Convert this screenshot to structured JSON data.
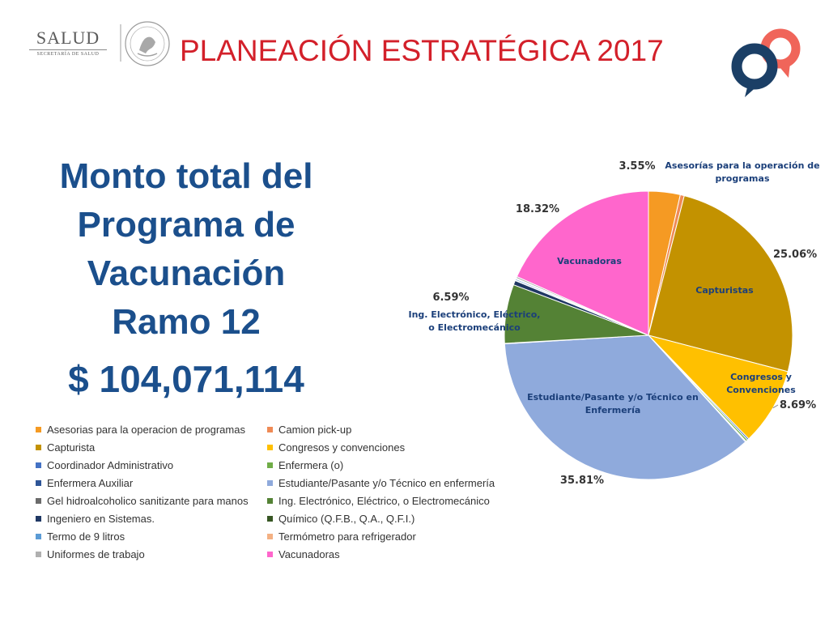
{
  "header": {
    "logo_text": "SALUD",
    "logo_subtext": "SECRETARÍA DE SALUD",
    "title": "PLANEACIÓN ESTRATÉGICA 2017"
  },
  "summary": {
    "lines": [
      "Monto total del",
      "Programa de",
      "Vacunación",
      "Ramo 12"
    ],
    "amount": "$ 104,071,114"
  },
  "chart_data": {
    "type": "pie",
    "start_angle_deg": 0,
    "direction": "clockwise",
    "slices": [
      {
        "label": "Asesorias para la operacion de programas",
        "value": 3.55,
        "color": "#f59a23"
      },
      {
        "label": "Camion pick-up",
        "value": 0.45,
        "color": "#ef8a55"
      },
      {
        "label": "Capturista",
        "value": 25.06,
        "color": "#c39200"
      },
      {
        "label": "Congresos y convenciones",
        "value": 8.69,
        "color": "#ffc000"
      },
      {
        "label": "Coordinador Administrativo",
        "value": 0.18,
        "color": "#4472c4"
      },
      {
        "label": "Enfermera (o)",
        "value": 0.22,
        "color": "#70ad47"
      },
      {
        "label": "Enfermera Auxiliar",
        "value": 0.1,
        "color": "#2e5597"
      },
      {
        "label": "Estudiante/Pasante y/o Técnico en enfermería",
        "value": 35.81,
        "color": "#8faadc"
      },
      {
        "label": "Gel hidroalcoholico sanitizante para manos",
        "value": 0.05,
        "color": "#6b6b6b"
      },
      {
        "label": "Ing. Electrónico, Eléctrico, o Electromecánico",
        "value": 6.59,
        "color": "#548235"
      },
      {
        "label": "Ingeniero en Sistemas.",
        "value": 0.5,
        "color": "#203864"
      },
      {
        "label": "Químico (Q.F.B., Q.A., Q.F.I.)",
        "value": 0.05,
        "color": "#375623"
      },
      {
        "label": "Termo de 9 litros",
        "value": 0.15,
        "color": "#5b9bd5"
      },
      {
        "label": "Termómetro para refrigerador",
        "value": 0.08,
        "color": "#f4b183"
      },
      {
        "label": "Uniformes de trabajo",
        "value": 0.2,
        "color": "#b0b0b0"
      },
      {
        "label": "Vacunadoras",
        "value": 18.32,
        "color": "#ff66cc"
      }
    ],
    "percent_labels": [
      {
        "slice": "Asesorias para la operacion de programas",
        "text": "3.55%"
      },
      {
        "slice": "Capturista",
        "text": "25.06%"
      },
      {
        "slice": "Congresos y convenciones",
        "text": "8.69%"
      },
      {
        "slice": "Estudiante/Pasante y/o Técnico en enfermería",
        "text": "35.81%"
      },
      {
        "slice": "Ing. Electrónico, Eléctrico, o Electromecánico",
        "text": "6.59%"
      },
      {
        "slice": "Vacunadoras",
        "text": "18.32%"
      }
    ],
    "category_labels": [
      {
        "slice": "Asesorias para la operacion de programas",
        "lines": [
          "Asesorías para la operación de",
          "programas"
        ]
      },
      {
        "slice": "Capturista",
        "lines": [
          "Capturistas"
        ]
      },
      {
        "slice": "Congresos y convenciones",
        "lines": [
          "Congresos y",
          "Convenciones"
        ]
      },
      {
        "slice": "Estudiante/Pasante y/o Técnico en enfermería",
        "lines": [
          "Estudiante/Pasante y/o Técnico en",
          "Enfermería"
        ]
      },
      {
        "slice": "Ing. Electrónico, Eléctrico, o Electromecánico",
        "lines": [
          "Ing. Electrónico, Eléctrico,",
          "o Electromecánico"
        ]
      },
      {
        "slice": "Vacunadoras",
        "lines": [
          "Vacunadoras"
        ]
      }
    ],
    "legend": [
      "Asesorias para la operacion de programas",
      "Camion pick-up",
      "Capturista",
      "Congresos y convenciones",
      "Coordinador Administrativo",
      "Enfermera (o)",
      "Enfermera Auxiliar",
      "Estudiante/Pasante y/o Técnico en enfermería",
      "Gel hidroalcoholico sanitizante para manos",
      "Ing. Electrónico, Eléctrico, o Electromecánico",
      "Ingeniero en Sistemas.",
      "Químico (Q.F.B., Q.A., Q.F.I.)",
      "Termo de 9 litros",
      "Termómetro para refrigerador",
      "Uniformes de trabajo",
      "Vacunadoras"
    ],
    "legend_placement": "bottom-left"
  },
  "colors": {
    "title_red": "#d3202a",
    "summary_blue": "#1b4f8c",
    "brand_orange": "#f0655a",
    "brand_navy": "#1b3f66"
  }
}
